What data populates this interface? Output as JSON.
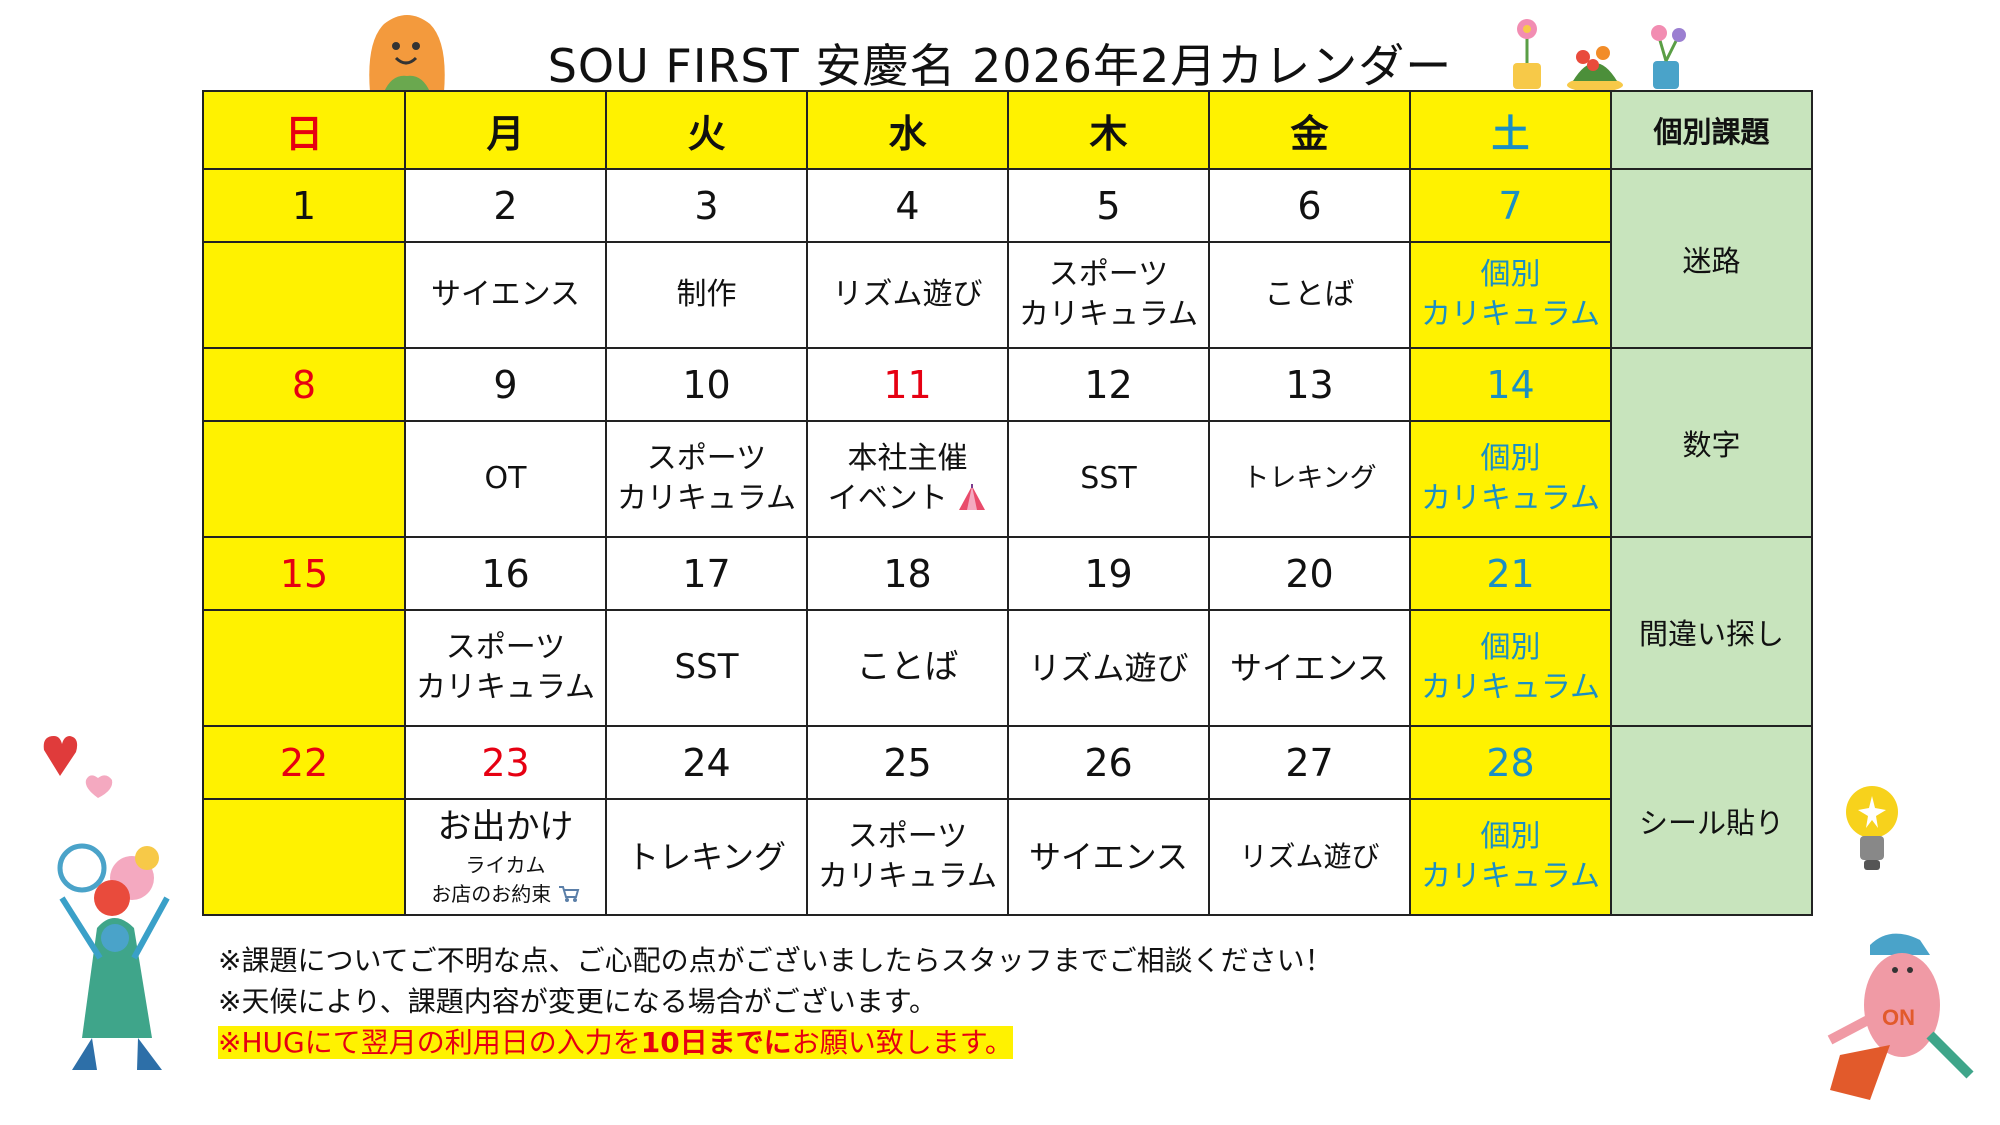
{
  "title": "SOU FIRST 安慶名  2026年2月カレンダー",
  "colors": {
    "header_fill": "#fff200",
    "task_fill": "#c8e4bd",
    "holiday_red": "#e60012",
    "saturday_blue": "#1a8fc4"
  },
  "headers": [
    "日",
    "月",
    "火",
    "水",
    "木",
    "金",
    "土"
  ],
  "task_header": "個別課題",
  "weeks": [
    {
      "dates": [
        "1",
        "2",
        "3",
        "4",
        "5",
        "6",
        "7"
      ],
      "acts": [
        "",
        "サイエンス",
        "制作",
        "リズム遊び",
        "スポーツ\nカリキュラム",
        "ことば",
        "個別\nカリキュラム"
      ],
      "task": "迷路"
    },
    {
      "dates": [
        "8",
        "9",
        "10",
        "11",
        "12",
        "13",
        "14"
      ],
      "acts": [
        "",
        "OT",
        "スポーツ\nカリキュラム",
        "本社主催\nイベント",
        "SST",
        "トレキング",
        "個別\nカリキュラム"
      ],
      "task": "数字"
    },
    {
      "dates": [
        "15",
        "16",
        "17",
        "18",
        "19",
        "20",
        "21"
      ],
      "acts": [
        "",
        "スポーツ\nカリキュラム",
        "SST",
        "ことば",
        "リズム遊び",
        "サイエンス",
        "個別\nカリキュラム"
      ],
      "task": "間違い探し"
    },
    {
      "dates": [
        "22",
        "23",
        "24",
        "25",
        "26",
        "27",
        "28"
      ],
      "acts": [
        "",
        "お出かけ",
        "トレキング",
        "スポーツ\nカリキュラム",
        "サイエンス",
        "リズム遊び",
        "個別\nカリキュラム"
      ],
      "act_sub": "ライカム\nお店のお約束",
      "task": "シール貼り"
    }
  ],
  "notes": {
    "line1": "※課題についてご不明な点、ご心配の点がございましたらスタッフまでご相談ください！",
    "line2": "※天候により、課題内容が変更になる場合がございます。",
    "line3_pre": "※HUGにて翌月の利用日の入力を",
    "line3_bold": "10日までに",
    "line3_post": "お願い致します。"
  },
  "icons": [
    "orange-character-icon",
    "flower-pots-icon",
    "hearts-icon",
    "flower-kid-icon",
    "lightbulb-icon",
    "running-character-icon",
    "circus-tent-icon",
    "shopping-cart-icon"
  ]
}
